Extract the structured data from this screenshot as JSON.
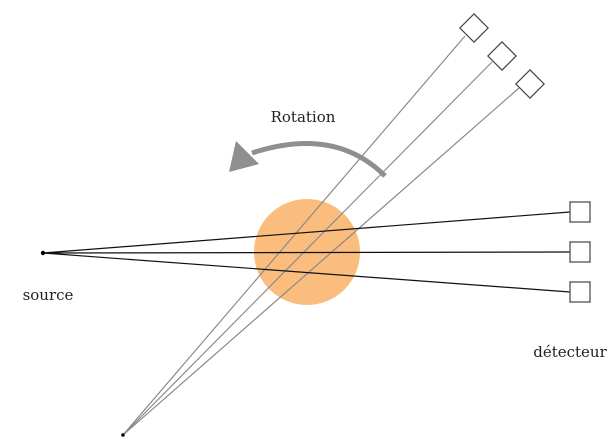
{
  "labels": {
    "rotation": "Rotation",
    "source": "source",
    "detector": "détecteur"
  },
  "colors": {
    "object_fill": "#fbbd7e",
    "arrow": "#8f8f8f",
    "rays_current": "#111111",
    "rays_rotated": "#8a8a8a",
    "detector_stroke": "#444444",
    "source_point": "#000000"
  }
}
